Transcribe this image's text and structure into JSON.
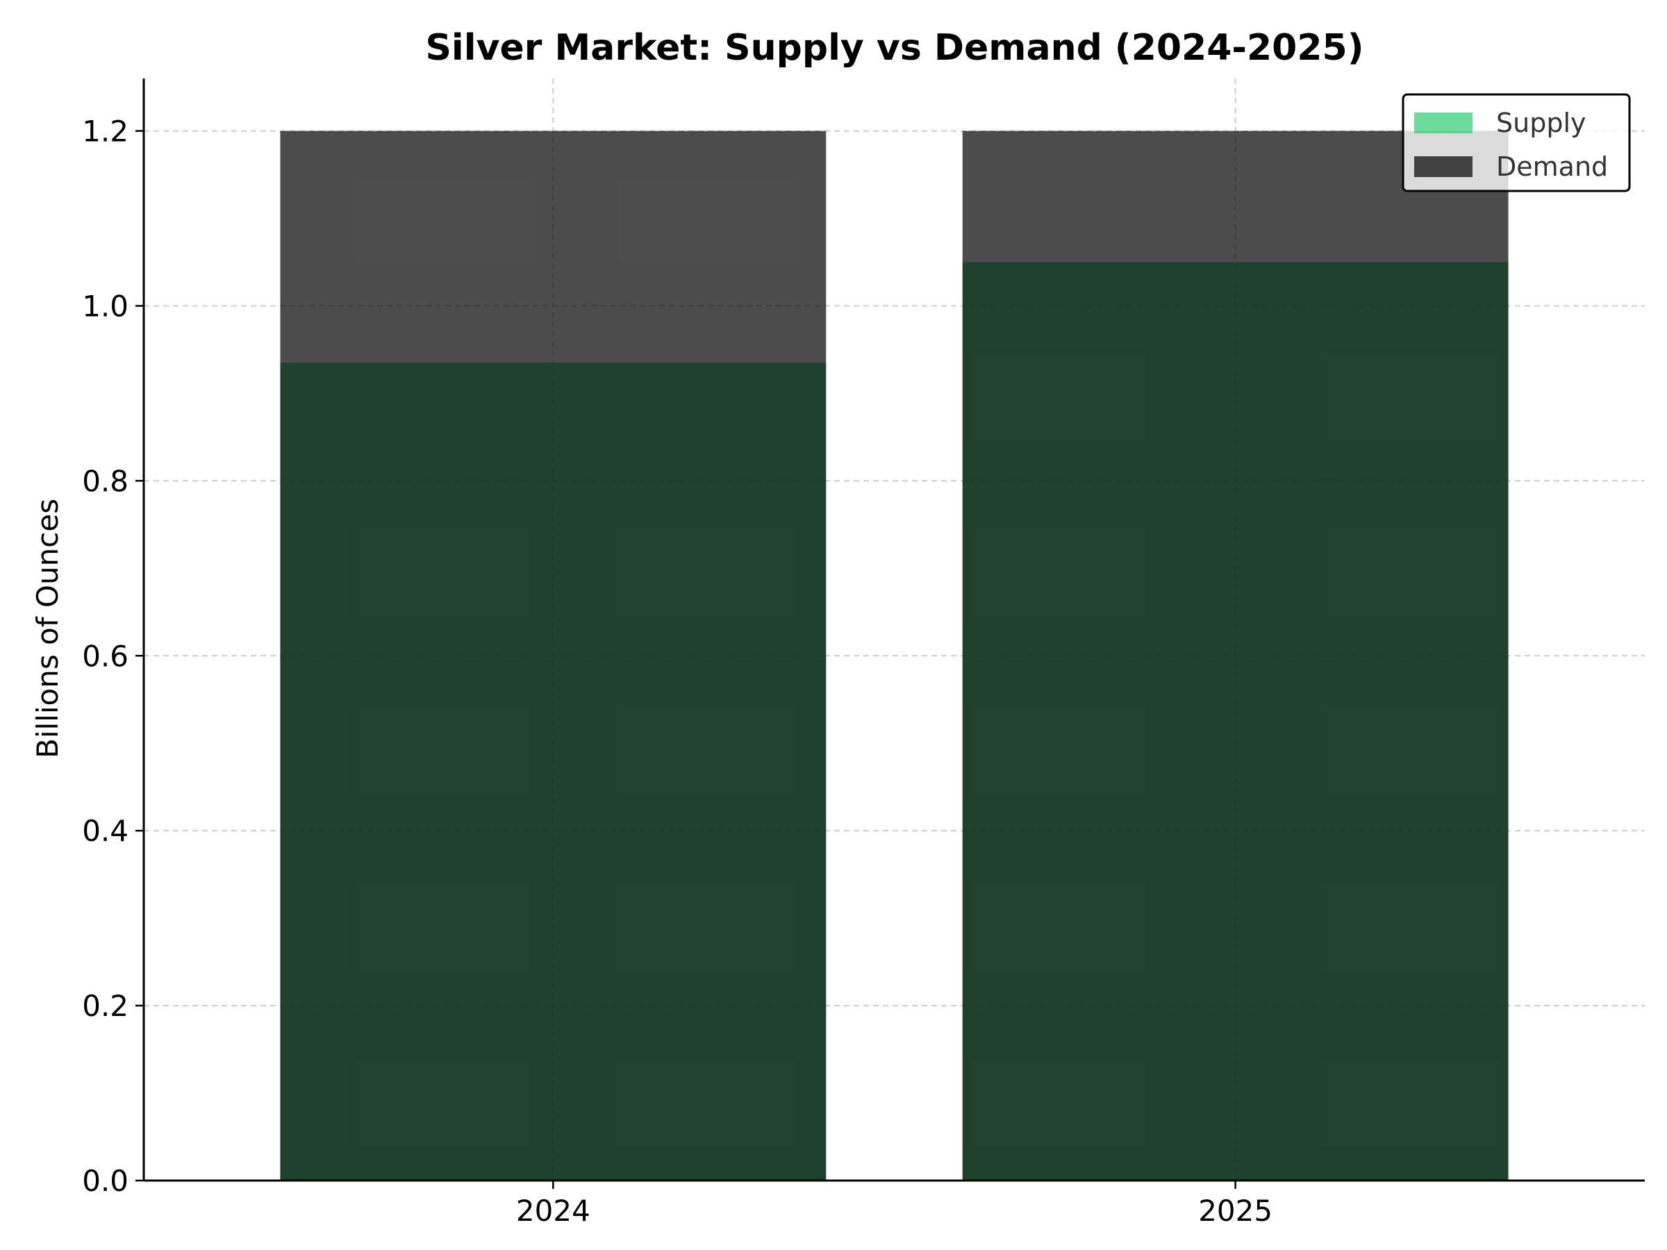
{
  "chart_data": {
    "type": "bar",
    "title": "Silver Market: Supply vs Demand (2024-2025)",
    "xlabel": "",
    "ylabel": "Billions of Ounces",
    "categories": [
      "2024",
      "2025"
    ],
    "series": [
      {
        "name": "Supply",
        "values": [
          0.935,
          1.05
        ],
        "color": "#2ecc71"
      },
      {
        "name": "Demand",
        "values": [
          1.2,
          1.2
        ],
        "color": "#000000"
      }
    ],
    "bar_alpha": 0.7,
    "ylim": [
      0,
      1.26
    ],
    "yticks": [
      "0.0",
      "0.2",
      "0.4",
      "0.6",
      "0.8",
      "1.0",
      "1.2"
    ],
    "grid": true,
    "legend_position": "top-right"
  }
}
